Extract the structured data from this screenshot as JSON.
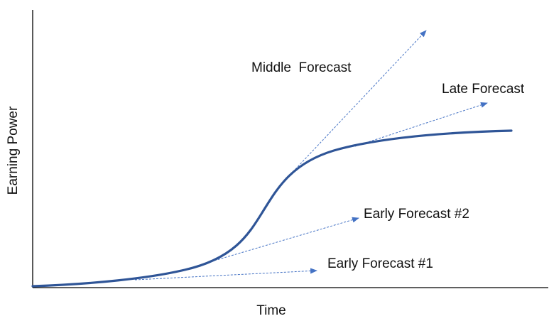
{
  "xlabel": "Time",
  "ylabel": "Earning Power",
  "colors": {
    "curve": "#2f5597",
    "forecast": "#4472c4",
    "axis": "#000000",
    "text": "#111111"
  },
  "forecasts": {
    "early1": {
      "label": "Early Forecast #1"
    },
    "early2": {
      "label": "Early Forecast #2"
    },
    "middle": {
      "label": "Middle  Forecast"
    },
    "late": {
      "label": "Late Forecast"
    }
  }
}
